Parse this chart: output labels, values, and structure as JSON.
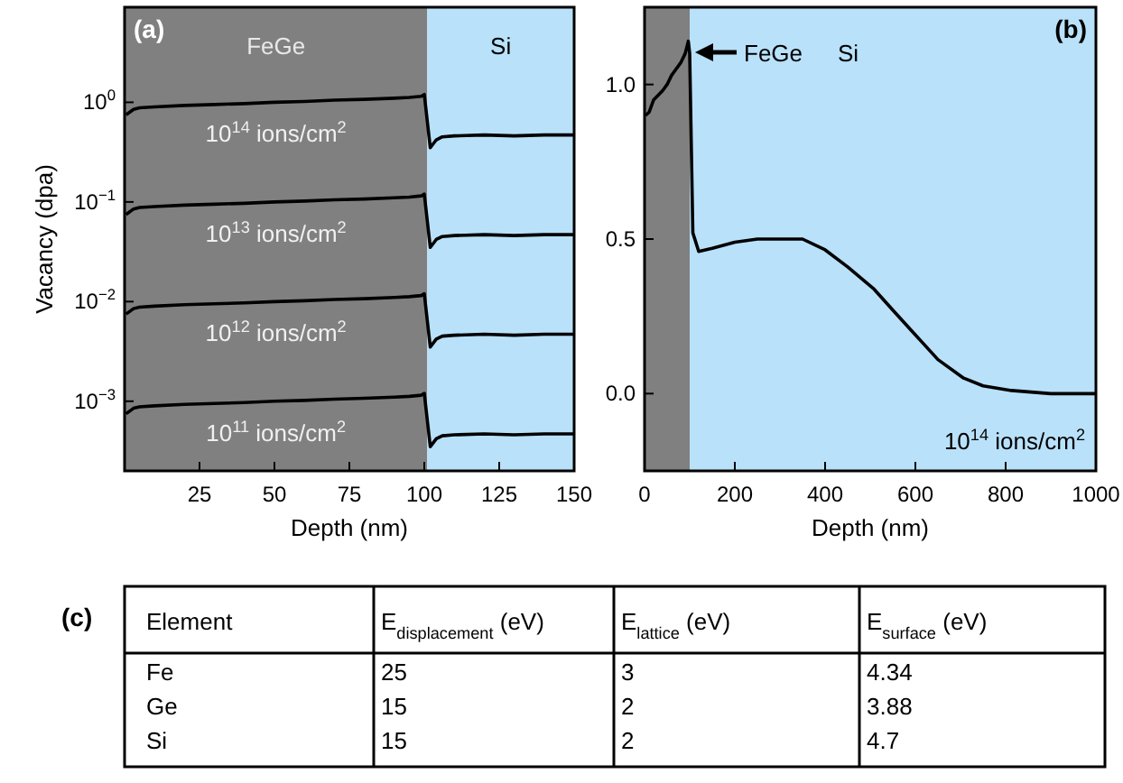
{
  "chart_data": [
    {
      "type": "line",
      "ylabel": "Vacancy (dpa)",
      "xlabel": "Depth (nm)",
      "log": "y",
      "xlim": [
        0,
        150
      ],
      "xticks": [
        25,
        50,
        75,
        100,
        125,
        150
      ],
      "ylim": [
        0.0002,
        9
      ],
      "yticks": [
        {
          "value": 1,
          "label": "10$^{0}$"
        },
        {
          "value": 0.1,
          "label": "10$^{−1}$"
        },
        {
          "value": 0.01,
          "label": "10$^{−2}$"
        },
        {
          "value": 0.001,
          "label": "10$^{−3}$"
        }
      ],
      "bands": [
        {
          "axis": "x",
          "from": 0,
          "to": 101,
          "label": "FeGe",
          "color": "#808080"
        },
        {
          "axis": "x",
          "from": 101,
          "to": 150,
          "label": "Si",
          "color": "#b9e1fa"
        }
      ],
      "annotations": [
        "(a)"
      ],
      "x": [
        0.5,
        3,
        5,
        10,
        20,
        30,
        40,
        50,
        60,
        70,
        80,
        90,
        95,
        99,
        100,
        102,
        104,
        106,
        110,
        120,
        130,
        140,
        150
      ],
      "series": [
        {
          "name": "10$^{14}$ ions/cm$^{2}$",
          "color": "#000000",
          "values": [
            0.75,
            0.85,
            0.88,
            0.9,
            0.93,
            0.95,
            0.97,
            1.0,
            1.02,
            1.05,
            1.07,
            1.1,
            1.12,
            1.15,
            1.2,
            0.35,
            0.42,
            0.45,
            0.46,
            0.47,
            0.46,
            0.47,
            0.47
          ]
        },
        {
          "name": "10$^{13}$ ions/cm$^{2}$",
          "color": "#000000",
          "values": [
            0.075,
            0.085,
            0.088,
            0.09,
            0.093,
            0.095,
            0.097,
            0.1,
            0.102,
            0.105,
            0.107,
            0.11,
            0.112,
            0.115,
            0.12,
            0.035,
            0.042,
            0.045,
            0.046,
            0.047,
            0.046,
            0.047,
            0.047
          ]
        },
        {
          "name": "10$^{12}$ ions/cm$^{2}$",
          "color": "#000000",
          "values": [
            0.0075,
            0.0085,
            0.0088,
            0.009,
            0.0093,
            0.0095,
            0.0097,
            0.01,
            0.0102,
            0.0105,
            0.0107,
            0.011,
            0.0112,
            0.0115,
            0.012,
            0.0035,
            0.0042,
            0.0045,
            0.0046,
            0.0047,
            0.0046,
            0.0047,
            0.0047
          ]
        },
        {
          "name": "10$^{11}$ ions/cm$^{2}$",
          "color": "#000000",
          "values": [
            0.00075,
            0.00085,
            0.00088,
            0.0009,
            0.00093,
            0.00095,
            0.00097,
            0.001,
            0.00102,
            0.00105,
            0.00107,
            0.0011,
            0.00112,
            0.00115,
            0.0012,
            0.00035,
            0.00042,
            0.00045,
            0.00046,
            0.00047,
            0.00046,
            0.00047,
            0.00047
          ]
        }
      ]
    },
    {
      "type": "line",
      "xlabel": "Depth (nm)",
      "xlim": [
        0,
        1000
      ],
      "xticks": [
        0,
        200,
        400,
        600,
        800,
        1000
      ],
      "ylim": [
        -0.25,
        1.25
      ],
      "yticks": [
        {
          "value": 0,
          "label": "0.0"
        },
        {
          "value": 0.5,
          "label": "0.5"
        },
        {
          "value": 1,
          "label": "1.0"
        }
      ],
      "bands": [
        {
          "axis": "x",
          "from": 0,
          "to": 100,
          "label": "FeGe",
          "color": "#808080"
        },
        {
          "axis": "x",
          "from": 100,
          "to": 1000,
          "label": "Si",
          "color": "#b9e1fa"
        }
      ],
      "annotations": [
        "(b)",
        "10$^{14}$ ions/cm$^{2}$"
      ],
      "x": [
        2,
        10,
        20,
        40,
        50,
        60,
        70,
        80,
        90,
        97,
        100,
        107,
        120,
        150,
        200,
        250,
        307,
        350,
        400,
        450,
        507,
        550,
        600,
        650,
        707,
        750,
        813,
        900,
        1000
      ],
      "series": [
        {
          "color": "#000000",
          "values": [
            0.9,
            0.91,
            0.95,
            0.98,
            1.0,
            1.03,
            1.05,
            1.07,
            1.1,
            1.14,
            1.1,
            0.52,
            0.46,
            0.47,
            0.49,
            0.5,
            0.5,
            0.5,
            0.465,
            0.41,
            0.34,
            0.27,
            0.19,
            0.11,
            0.05,
            0.025,
            0.01,
            0.0,
            0.0
          ]
        }
      ]
    },
    {
      "type": "other",
      "title": "(c)",
      "annotations": [
        "Element",
        "E$_{displacement}$ (eV)",
        "E$_{lattice}$ (eV)",
        "E$_{surface}$ (eV)",
        "Fe",
        "25",
        "3",
        "4.34",
        "Ge",
        "15",
        "2",
        "3.88",
        "Si",
        "15",
        "2",
        "4.7"
      ]
    }
  ]
}
